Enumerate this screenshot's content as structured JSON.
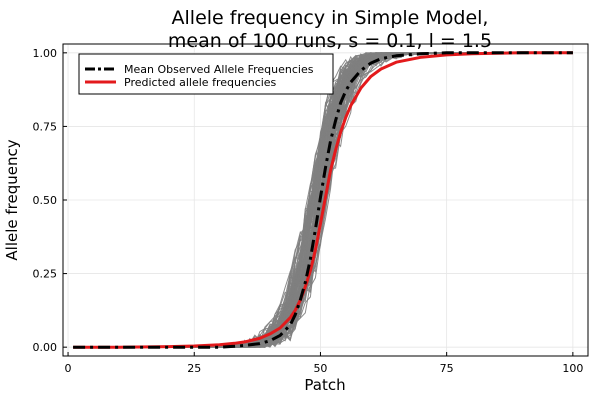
{
  "chart_data": {
    "type": "line",
    "title_line1": "Allele frequency in Simple Model,",
    "title_line2": "mean of 100 runs, s = 0.1, l = 1.5",
    "xlabel": "Patch",
    "ylabel": "Allele frequency",
    "xlim": [
      -1,
      103
    ],
    "ylim": [
      -0.03,
      1.03
    ],
    "xticks": [
      0,
      25,
      50,
      75,
      100
    ],
    "xtick_labels": [
      "0",
      "25",
      "50",
      "75",
      "100"
    ],
    "yticks": [
      0.0,
      0.25,
      0.5,
      0.75,
      1.0
    ],
    "ytick_labels": [
      "0.00",
      "0.25",
      "0.50",
      "0.75",
      "1.00"
    ],
    "grid": true,
    "legend_position": "top-left",
    "series": [
      {
        "name": "Mean Observed Allele Frequencies",
        "color": "#000000",
        "style": "dashdot",
        "x": [
          1,
          10,
          20,
          25,
          30,
          33,
          35,
          38,
          40,
          42,
          44,
          45,
          46,
          47,
          48,
          49,
          50,
          51,
          52,
          53,
          54,
          55,
          56,
          58,
          60,
          62,
          65,
          70,
          75,
          80,
          90,
          100
        ],
        "y": [
          0.0,
          0.0,
          0.0,
          0.0,
          0.0,
          0.003,
          0.006,
          0.012,
          0.022,
          0.04,
          0.075,
          0.11,
          0.16,
          0.22,
          0.3,
          0.4,
          0.51,
          0.61,
          0.7,
          0.77,
          0.83,
          0.87,
          0.9,
          0.94,
          0.965,
          0.98,
          0.99,
          0.997,
          1.0,
          1.0,
          1.0,
          1.0
        ]
      },
      {
        "name": "Predicted allele frequencies",
        "color": "#e31a1c",
        "style": "solid",
        "x": [
          1,
          10,
          20,
          25,
          30,
          33,
          35,
          38,
          40,
          42,
          44,
          45,
          46,
          47,
          48,
          49,
          50,
          51,
          52,
          53,
          54,
          55,
          56,
          58,
          60,
          62,
          65,
          70,
          75,
          80,
          90,
          100
        ],
        "y": [
          0.0,
          0.0,
          0.002,
          0.004,
          0.008,
          0.013,
          0.018,
          0.03,
          0.045,
          0.065,
          0.1,
          0.125,
          0.16,
          0.205,
          0.26,
          0.33,
          0.42,
          0.51,
          0.6,
          0.67,
          0.73,
          0.78,
          0.82,
          0.88,
          0.92,
          0.945,
          0.968,
          0.985,
          0.993,
          0.997,
          1.0,
          1.0
        ]
      }
    ],
    "background_runs": {
      "color": "#808080",
      "count": 100
    }
  }
}
